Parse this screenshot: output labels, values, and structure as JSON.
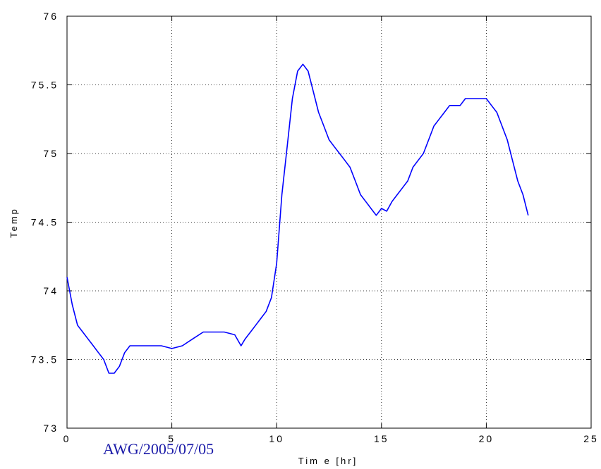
{
  "chart_data": {
    "type": "line",
    "title": "",
    "xlabel": "Tim e [hr]",
    "ylabel": "Temp",
    "xlim": [
      0,
      25
    ],
    "ylim": [
      73,
      76
    ],
    "x_ticks": [
      0,
      5,
      10,
      15,
      20,
      25
    ],
    "x_tick_labels": [
      "0",
      "5",
      "10",
      "15",
      "20",
      "25"
    ],
    "y_ticks": [
      73,
      73.5,
      74,
      74.5,
      75,
      75.5,
      76
    ],
    "y_tick_labels": [
      "73",
      "73.5",
      "74",
      "74.5",
      "75",
      "75.5",
      "76"
    ],
    "grid": true,
    "legend": "none",
    "line_color": "#0000ff",
    "annotation": "AWG/2005/07/05",
    "annotation_color": "#1a1aa8",
    "series": [
      {
        "x": [
          0.0,
          0.25,
          0.5,
          0.75,
          1.0,
          1.25,
          1.5,
          1.75,
          2.0,
          2.25,
          2.5,
          2.75,
          3.0,
          3.5,
          4.0,
          4.5,
          5.0,
          5.5,
          6.0,
          6.5,
          7.0,
          7.5,
          8.0,
          8.3,
          8.5,
          8.75,
          9.0,
          9.25,
          9.5,
          9.75,
          10.0,
          10.25,
          10.5,
          10.75,
          11.0,
          11.25,
          11.5,
          11.75,
          12.0,
          12.25,
          12.5,
          12.75,
          13.0,
          13.25,
          13.5,
          13.75,
          14.0,
          14.25,
          14.5,
          14.75,
          15.0,
          15.25,
          15.5,
          15.75,
          16.0,
          16.25,
          16.5,
          16.75,
          17.0,
          17.25,
          17.5,
          17.75,
          18.0,
          18.25,
          18.5,
          18.75,
          19.0,
          19.25,
          19.5,
          19.75,
          20.0,
          20.25,
          20.5,
          20.75,
          21.0,
          21.25,
          21.5,
          21.75,
          22.0
        ],
        "y": [
          74.1,
          73.9,
          73.75,
          73.7,
          73.65,
          73.6,
          73.55,
          73.5,
          73.4,
          73.4,
          73.45,
          73.55,
          73.6,
          73.6,
          73.6,
          73.6,
          73.58,
          73.6,
          73.65,
          73.7,
          73.7,
          73.7,
          73.68,
          73.6,
          73.65,
          73.7,
          73.75,
          73.8,
          73.85,
          73.95,
          74.2,
          74.7,
          75.05,
          75.4,
          75.6,
          75.65,
          75.6,
          75.45,
          75.3,
          75.2,
          75.1,
          75.05,
          75.0,
          74.95,
          74.9,
          74.8,
          74.7,
          74.65,
          74.6,
          74.55,
          74.6,
          74.58,
          74.65,
          74.7,
          74.75,
          74.8,
          74.9,
          74.95,
          75.0,
          75.1,
          75.2,
          75.25,
          75.3,
          75.35,
          75.35,
          75.35,
          75.4,
          75.4,
          75.4,
          75.4,
          75.4,
          75.35,
          75.3,
          75.2,
          75.1,
          74.95,
          74.8,
          74.7,
          74.55
        ]
      }
    ]
  }
}
